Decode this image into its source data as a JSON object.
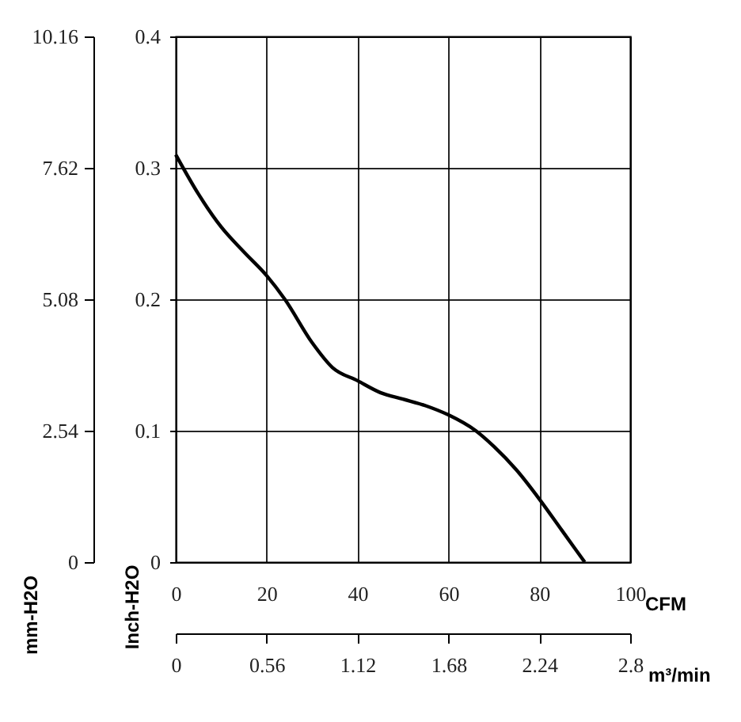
{
  "chart_data": {
    "type": "line",
    "x": [
      0,
      5,
      10,
      15,
      20,
      24,
      30,
      34.5,
      40,
      45,
      50,
      55,
      60,
      66,
      70,
      75,
      80,
      85,
      90
    ],
    "series": [
      {
        "color": "#000000",
        "values": [
          0.31,
          0.28,
          0.255,
          0.236,
          0.218,
          0.2,
          0.167,
          0.148,
          0.138,
          0.129,
          0.124,
          0.119,
          0.112,
          0.1,
          0.088,
          0.07,
          0.048,
          0.024,
          0
        ]
      }
    ],
    "xlim": [
      0,
      100
    ],
    "xticks": [
      0,
      20,
      40,
      60,
      80,
      100
    ],
    "ylim": [
      0,
      0.4
    ],
    "yticks": [
      0,
      0.1,
      0.2,
      0.3,
      0.4
    ],
    "y2lim": [
      0,
      10.16
    ],
    "y2ticks": [
      0,
      2.54,
      5.08,
      7.62,
      10.16
    ],
    "x2lim": [
      0,
      2.8
    ],
    "x2ticks": [
      0,
      0.56,
      1.12,
      1.68,
      2.24,
      2.8
    ],
    "xlabel": "CFM",
    "x2label": "m³/min",
    "ylabel": "Inch-H2O",
    "y2label": "mm-H2O",
    "grid": true,
    "legend": false,
    "marker": "none",
    "line_style": "solid"
  }
}
